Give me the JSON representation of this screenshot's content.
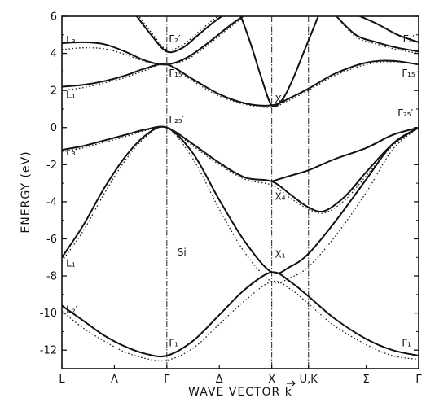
{
  "chart_data": {
    "type": "line",
    "title": "",
    "xlabel": "WAVE VECTOR k",
    "ylabel": "ENERGY (eV)",
    "ylim": [
      -13,
      6
    ],
    "yticks": [
      6,
      4,
      2,
      0,
      -2,
      -4,
      -6,
      -8,
      -10,
      -12
    ],
    "ytick_labels": [
      "6",
      "4",
      "2",
      "0",
      "-2",
      "-4",
      "-6",
      "-8",
      "-10",
      "-12"
    ],
    "kpoints": [
      {
        "label": "L",
        "x": 0
      },
      {
        "label": "Λ",
        "x": 0.5
      },
      {
        "label": "Γ",
        "x": 1
      },
      {
        "label": "Δ",
        "x": 1.5
      },
      {
        "label": "X",
        "x": 2
      },
      {
        "label": "U,K",
        "x": 2.35
      },
      {
        "label": "Σ",
        "x": 2.9
      },
      {
        "label": "Γ",
        "x": 3.4
      }
    ],
    "vlines": [
      1,
      2,
      2.35
    ],
    "annotations": [
      {
        "text": "L₃",
        "x": 0.04,
        "y": 4.55
      },
      {
        "text": "L₁",
        "x": 0.04,
        "y": 1.6
      },
      {
        "text": "L₃′",
        "x": 0.04,
        "y": -1.5
      },
      {
        "text": "L₁",
        "x": 0.04,
        "y": -7.5
      },
      {
        "text": "L₂′",
        "x": 0.04,
        "y": -10.0
      },
      {
        "text": "Γ₂′",
        "x": 1.02,
        "y": 4.6
      },
      {
        "text": "Γ₁₅",
        "x": 1.02,
        "y": 2.75
      },
      {
        "text": "Γ₂₅′",
        "x": 1.02,
        "y": 0.25
      },
      {
        "text": "Γ₁",
        "x": 1.02,
        "y": -11.8
      },
      {
        "text": "X₁",
        "x": 2.03,
        "y": 1.35
      },
      {
        "text": "X₄",
        "x": 2.03,
        "y": -3.9
      },
      {
        "text": "X₁",
        "x": 2.03,
        "y": -7.0
      },
      {
        "text": "Γ₂′",
        "x": 3.25,
        "y": 4.6
      },
      {
        "text": "Γ₁₅",
        "x": 3.24,
        "y": 2.75
      },
      {
        "text": "Γ₂₅′",
        "x": 3.2,
        "y": 0.6
      },
      {
        "text": "Γ₁",
        "x": 3.24,
        "y": -11.8
      },
      {
        "text": "Si",
        "x": 1.1,
        "y": -6.9
      }
    ],
    "series": [
      {
        "style": "solid",
        "points": [
          [
            0,
            -9.6
          ],
          [
            0.2,
            -10.4
          ],
          [
            0.4,
            -11.2
          ],
          [
            0.6,
            -11.8
          ],
          [
            0.8,
            -12.2
          ],
          [
            1,
            -12.3
          ],
          [
            1.25,
            -11.5
          ],
          [
            1.5,
            -10.1
          ],
          [
            1.75,
            -8.7
          ],
          [
            2,
            -7.8
          ],
          [
            2.175,
            -8.3
          ],
          [
            2.35,
            -9.1
          ],
          [
            2.6,
            -10.3
          ],
          [
            2.9,
            -11.4
          ],
          [
            3.15,
            -12.0
          ],
          [
            3.4,
            -12.3
          ]
        ]
      },
      {
        "style": "solid",
        "points": [
          [
            0,
            -7.0
          ],
          [
            0.2,
            -5.3
          ],
          [
            0.4,
            -3.3
          ],
          [
            0.6,
            -1.6
          ],
          [
            0.8,
            -0.4
          ],
          [
            1,
            0
          ],
          [
            1.25,
            -1.4
          ],
          [
            1.5,
            -3.9
          ],
          [
            1.75,
            -6.2
          ],
          [
            2,
            -7.8
          ],
          [
            2.175,
            -7.5
          ],
          [
            2.35,
            -6.8
          ],
          [
            2.6,
            -5.1
          ],
          [
            2.9,
            -2.8
          ],
          [
            3.15,
            -0.9
          ],
          [
            3.4,
            0
          ]
        ]
      },
      {
        "style": "solid",
        "points": [
          [
            0,
            -1.2
          ],
          [
            0.2,
            -1.0
          ],
          [
            0.4,
            -0.7
          ],
          [
            0.6,
            -0.4
          ],
          [
            0.8,
            -0.1
          ],
          [
            1,
            0
          ],
          [
            1.25,
            -0.9
          ],
          [
            1.5,
            -1.9
          ],
          [
            1.75,
            -2.7
          ],
          [
            2,
            -2.9
          ],
          [
            2.175,
            -3.6
          ],
          [
            2.35,
            -4.3
          ],
          [
            2.5,
            -4.5
          ],
          [
            2.7,
            -3.7
          ],
          [
            2.9,
            -2.4
          ],
          [
            3.15,
            -0.9
          ],
          [
            3.4,
            0
          ]
        ]
      },
      {
        "style": "solid",
        "points": [
          [
            2,
            -2.9
          ],
          [
            2.175,
            -2.6
          ],
          [
            2.35,
            -2.3
          ],
          [
            2.6,
            -1.7
          ],
          [
            2.9,
            -1.1
          ],
          [
            3.15,
            -0.4
          ],
          [
            3.4,
            0
          ]
        ]
      },
      {
        "style": "solid",
        "points": [
          [
            0,
            2.2
          ],
          [
            0.2,
            2.3
          ],
          [
            0.4,
            2.5
          ],
          [
            0.6,
            2.8
          ],
          [
            0.8,
            3.2
          ],
          [
            1,
            3.4
          ],
          [
            1.25,
            2.6
          ],
          [
            1.5,
            1.8
          ],
          [
            1.75,
            1.3
          ],
          [
            2,
            1.2
          ],
          [
            2.175,
            1.6
          ],
          [
            2.35,
            2.1
          ],
          [
            2.6,
            2.9
          ],
          [
            2.9,
            3.5
          ],
          [
            3.15,
            3.6
          ],
          [
            3.4,
            3.4
          ]
        ]
      },
      {
        "style": "solid",
        "points": [
          [
            0,
            4.55
          ],
          [
            0.2,
            4.6
          ],
          [
            0.4,
            4.5
          ],
          [
            0.6,
            4.1
          ],
          [
            0.8,
            3.6
          ],
          [
            1,
            3.4
          ],
          [
            1.2,
            3.8
          ],
          [
            1.4,
            4.6
          ],
          [
            1.6,
            5.5
          ],
          [
            1.75,
            6.1
          ]
        ]
      },
      {
        "style": "solid",
        "points": [
          [
            0.7,
            6.1
          ],
          [
            0.85,
            5.0
          ],
          [
            1,
            4.1
          ],
          [
            1.15,
            4.3
          ],
          [
            1.3,
            5.0
          ],
          [
            1.45,
            5.7
          ],
          [
            1.55,
            6.1
          ]
        ]
      },
      {
        "style": "solid",
        "points": [
          [
            1.7,
            6.1
          ],
          [
            1.8,
            4.5
          ],
          [
            1.9,
            2.7
          ],
          [
            2,
            1.2
          ],
          [
            2.1,
            1.5
          ],
          [
            2.2,
            2.6
          ],
          [
            2.3,
            4.0
          ],
          [
            2.4,
            5.4
          ],
          [
            2.45,
            6.1
          ]
        ]
      },
      {
        "style": "solid",
        "points": [
          [
            2.6,
            6.1
          ],
          [
            2.8,
            5.0
          ],
          [
            3.0,
            4.6
          ],
          [
            3.2,
            4.3
          ],
          [
            3.4,
            4.1
          ]
        ]
      },
      {
        "style": "solid",
        "points": [
          [
            2.8,
            6.1
          ],
          [
            3.0,
            5.6
          ],
          [
            3.2,
            5.0
          ],
          [
            3.4,
            4.6
          ]
        ]
      },
      {
        "style": "dotted",
        "points": [
          [
            0,
            -9.9
          ],
          [
            0.2,
            -10.8
          ],
          [
            0.4,
            -11.5
          ],
          [
            0.6,
            -12.1
          ],
          [
            0.8,
            -12.45
          ],
          [
            1,
            -12.55
          ],
          [
            1.25,
            -11.9
          ],
          [
            1.5,
            -10.6
          ],
          [
            1.75,
            -9.3
          ],
          [
            2,
            -8.3
          ],
          [
            2.175,
            -8.7
          ],
          [
            2.35,
            -9.5
          ],
          [
            2.6,
            -10.7
          ],
          [
            2.9,
            -11.7
          ],
          [
            3.15,
            -12.3
          ],
          [
            3.4,
            -12.5
          ]
        ]
      },
      {
        "style": "dotted",
        "points": [
          [
            0,
            -7.2
          ],
          [
            0.2,
            -5.6
          ],
          [
            0.4,
            -3.6
          ],
          [
            0.6,
            -1.8
          ],
          [
            0.8,
            -0.5
          ],
          [
            1,
            0
          ],
          [
            1.25,
            -1.7
          ],
          [
            1.5,
            -4.4
          ],
          [
            1.75,
            -6.8
          ],
          [
            2,
            -8.3
          ],
          [
            2.175,
            -8.1
          ],
          [
            2.35,
            -7.5
          ],
          [
            2.6,
            -5.9
          ],
          [
            2.9,
            -3.5
          ],
          [
            3.15,
            -1.2
          ],
          [
            3.4,
            0
          ]
        ]
      },
      {
        "style": "dotted",
        "points": [
          [
            0,
            -1.3
          ],
          [
            0.2,
            -1.1
          ],
          [
            0.4,
            -0.8
          ],
          [
            0.6,
            -0.5
          ],
          [
            0.8,
            -0.15
          ],
          [
            1,
            0
          ],
          [
            1.25,
            -1.0
          ],
          [
            1.5,
            -2.0
          ],
          [
            1.75,
            -2.8
          ],
          [
            2,
            -3.1
          ],
          [
            2.175,
            -3.8
          ],
          [
            2.35,
            -4.4
          ],
          [
            2.5,
            -4.6
          ],
          [
            2.7,
            -3.9
          ],
          [
            2.9,
            -2.6
          ],
          [
            3.15,
            -1.0
          ],
          [
            3.4,
            0
          ]
        ]
      },
      {
        "style": "dotted",
        "points": [
          [
            0,
            2.0
          ],
          [
            0.2,
            2.15
          ],
          [
            0.4,
            2.4
          ],
          [
            0.6,
            2.7
          ],
          [
            0.8,
            3.1
          ],
          [
            1,
            3.4
          ],
          [
            1.25,
            2.5
          ],
          [
            1.5,
            1.7
          ],
          [
            1.75,
            1.25
          ],
          [
            2,
            1.1
          ],
          [
            2.175,
            1.5
          ],
          [
            2.35,
            2.0
          ],
          [
            2.6,
            2.8
          ],
          [
            2.9,
            3.4
          ],
          [
            3.15,
            3.55
          ],
          [
            3.4,
            3.4
          ]
        ]
      },
      {
        "style": "dotted",
        "points": [
          [
            0,
            4.2
          ],
          [
            0.2,
            4.3
          ],
          [
            0.4,
            4.25
          ],
          [
            0.6,
            3.95
          ],
          [
            0.8,
            3.55
          ],
          [
            1,
            3.4
          ],
          [
            1.2,
            3.7
          ],
          [
            1.4,
            4.5
          ],
          [
            1.6,
            5.4
          ],
          [
            1.75,
            6.05
          ]
        ]
      },
      {
        "style": "dotted",
        "points": [
          [
            0.72,
            6.1
          ],
          [
            0.87,
            5.0
          ],
          [
            1,
            4.2
          ],
          [
            1.15,
            4.45
          ],
          [
            1.3,
            5.15
          ],
          [
            1.45,
            5.85
          ],
          [
            1.53,
            6.1
          ]
        ]
      },
      {
        "style": "dotted",
        "points": [
          [
            2.6,
            6.1
          ],
          [
            2.8,
            4.9
          ],
          [
            3.0,
            4.5
          ],
          [
            3.2,
            4.2
          ],
          [
            3.4,
            4.0
          ]
        ]
      }
    ]
  }
}
